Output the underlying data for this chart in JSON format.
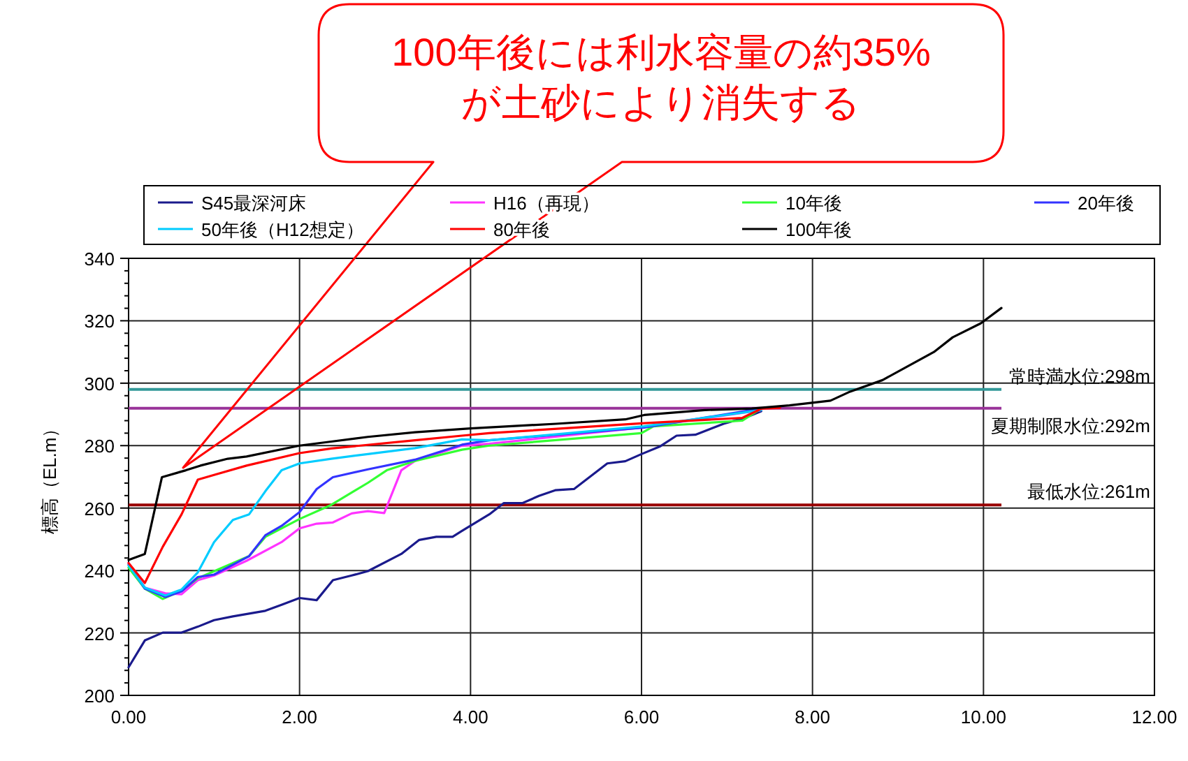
{
  "chart_data": {
    "type": "line",
    "ylabel": "標高（EL.m）",
    "annotations": [
      "100年後には利水容量の約35%\nが土砂により消失する"
    ],
    "xlim": [
      0,
      12
    ],
    "ylim": [
      200,
      340
    ],
    "xticks": [
      {
        "value": 0,
        "label": "0.00"
      },
      {
        "value": 2,
        "label": "2.00"
      },
      {
        "value": 4,
        "label": "4.00"
      },
      {
        "value": 6,
        "label": "6.00"
      },
      {
        "value": 8,
        "label": "8.00"
      },
      {
        "value": 10,
        "label": "10.00"
      },
      {
        "value": 12,
        "label": "12.00"
      }
    ],
    "yticks": [
      200,
      220,
      240,
      260,
      280,
      300,
      320,
      340
    ],
    "grid": true,
    "legend": "top",
    "ref_lines": [
      {
        "axis": "y",
        "value": 298,
        "label": "常時満水位:298m",
        "color": "#339999"
      },
      {
        "axis": "y",
        "value": 292,
        "label": "夏期制限水位:292m",
        "color": "#993399"
      },
      {
        "axis": "y",
        "value": 261,
        "label": "最低水位:261m",
        "color": "#990000"
      }
    ],
    "series": [
      {
        "name": "S45最深河床",
        "color": "#1a1a8c",
        "x": [
          0,
          0.19,
          0.4,
          0.62,
          0.81,
          1.0,
          1.22,
          1.6,
          1.79,
          2.0,
          2.2,
          2.39,
          2.61,
          2.8,
          3.19,
          3.4,
          3.6,
          3.79,
          3.9,
          4.22,
          4.39,
          4.61,
          4.8,
          4.99,
          5.21,
          5.6,
          5.81,
          6.0,
          6.22,
          6.41,
          6.63,
          6.96,
          7.24,
          7.4
        ],
        "values": [
          209,
          217.6,
          220.1,
          220.1,
          222,
          224.1,
          225.3,
          227.1,
          229,
          231.2,
          230.5,
          236.9,
          238.4,
          239.8,
          245.3,
          249.8,
          250.8,
          250.8,
          252.7,
          258,
          261.6,
          261.6,
          263.9,
          265.7,
          266.1,
          274.3,
          275,
          277.3,
          279.8,
          283.2,
          283.5,
          287,
          289.2,
          291
        ]
      },
      {
        "name": "H16（再現）",
        "color": "#ff33ff",
        "x": [
          0,
          0.19,
          0.43,
          0.62,
          0.81,
          1.0,
          1.38,
          1.79,
          2.0,
          2.2,
          2.39,
          2.61,
          2.8,
          2.99,
          3.19,
          3.35,
          3.9,
          4.22,
          6.0,
          7.4
        ],
        "values": [
          242.4,
          234.5,
          232.7,
          232.4,
          236.9,
          238.4,
          243.1,
          249.1,
          253.5,
          255,
          255.4,
          258.3,
          259,
          258.4,
          272.1,
          275.1,
          280,
          280.6,
          285.8,
          291.4
        ]
      },
      {
        "name": "10年後",
        "color": "#33ff33",
        "x": [
          0,
          0.19,
          0.4,
          0.62,
          0.81,
          1.41,
          1.6,
          2.0,
          2.37,
          2.8,
          3.02,
          3.35,
          3.9,
          4.22,
          6.0,
          6.14,
          7.18,
          7.4
        ],
        "values": [
          240.9,
          234.2,
          230.9,
          233.5,
          237.5,
          244.6,
          250.8,
          256.5,
          261,
          268.1,
          272.1,
          275.1,
          278.7,
          280,
          284,
          286.2,
          288,
          291.9
        ]
      },
      {
        "name": "20年後",
        "color": "#3333ff",
        "x": [
          0,
          0.19,
          0.43,
          0.62,
          0.81,
          1.0,
          1.41,
          1.6,
          1.79,
          2.0,
          2.2,
          2.39,
          2.8,
          3.35,
          3.9,
          4.22,
          6.03,
          7.4
        ],
        "values": [
          241.9,
          234.2,
          231.5,
          233.3,
          237.9,
          238.7,
          244.6,
          251.3,
          254.3,
          258.7,
          266.1,
          269.9,
          272.4,
          275.5,
          280.3,
          281.7,
          285.8,
          291.9
        ]
      },
      {
        "name": "50年後（H12想定）",
        "color": "#00ccff",
        "x": [
          0,
          0.19,
          0.43,
          0.62,
          0.81,
          1.0,
          1.22,
          1.41,
          1.6,
          1.79,
          2.0,
          2.37,
          2.8,
          3.35,
          3.9,
          4.22,
          6.03,
          7.4
        ],
        "values": [
          241.6,
          234.5,
          232,
          233.9,
          239.4,
          249.1,
          256.2,
          258,
          265.4,
          272.1,
          274.3,
          275.8,
          277.3,
          279.2,
          282,
          281.7,
          286.2,
          291.4
        ]
      },
      {
        "name": "80年後",
        "color": "#ff0000",
        "x": [
          0,
          0.19,
          0.4,
          0.62,
          0.81,
          1.0,
          1.38,
          2.0,
          2.37,
          3.35,
          3.9,
          4.22,
          6.03,
          7.18,
          7.4,
          7.62
        ],
        "values": [
          242.4,
          236,
          247.6,
          258,
          269.1,
          270.6,
          273.6,
          277.6,
          279.1,
          281.7,
          283.2,
          284,
          287.2,
          288.9,
          291.8,
          292.1
        ]
      },
      {
        "name": "100年後",
        "color": "#000000",
        "x": [
          0,
          0.19,
          0.39,
          0.67,
          0.84,
          1.16,
          1.38,
          2.0,
          2.37,
          2.8,
          3.35,
          4.0,
          5.0,
          5.81,
          6.03,
          6.74,
          7.29,
          7.73,
          8.21,
          8.44,
          8.82,
          9.42,
          9.64,
          9.97,
          10.21
        ],
        "values": [
          243.4,
          245.3,
          269.9,
          272.1,
          273.6,
          275.8,
          276.5,
          280,
          281.3,
          282.8,
          284.3,
          285.5,
          287,
          288.4,
          289.8,
          291.4,
          291.9,
          292.9,
          294.4,
          297.3,
          301,
          310,
          314.7,
          319.2,
          324.1
        ]
      }
    ]
  }
}
